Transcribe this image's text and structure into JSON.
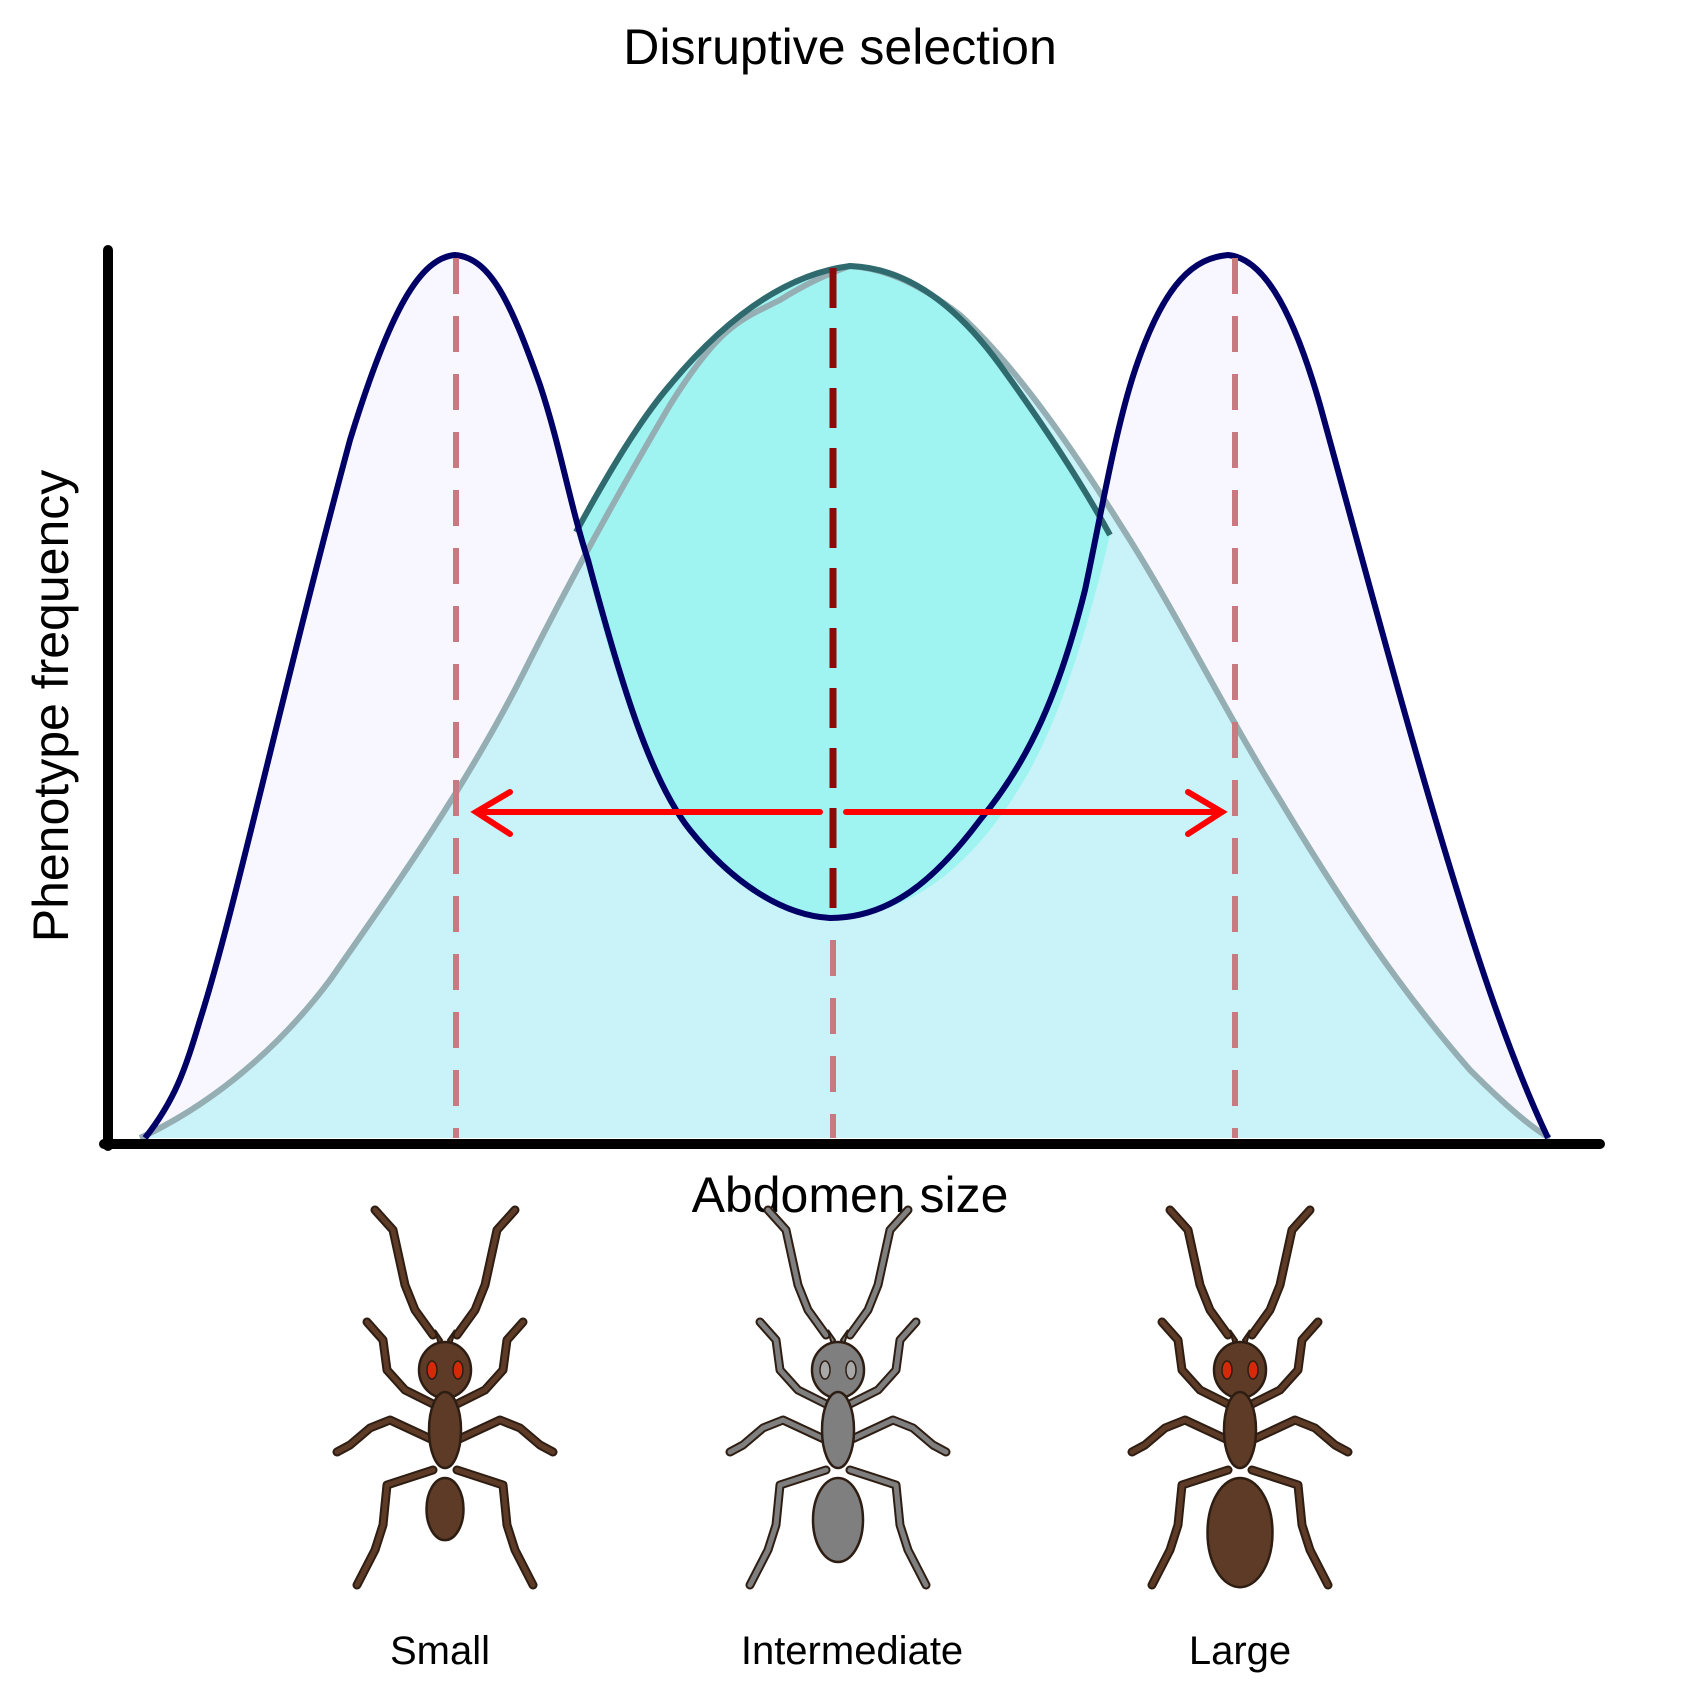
{
  "title": "Disruptive selection",
  "axes": {
    "xlabel": "Abdomen size",
    "ylabel": "Phenotype frequency"
  },
  "curves": [
    {
      "id": "original",
      "description": "single-peaked distribution around the intermediate phenotype",
      "fill": "#9ff4f2",
      "stroke": "#2f6b6e"
    },
    {
      "id": "after-selection",
      "description": "two-peaked distribution with peaks at small and large phenotypes",
      "fill": "#f8f7ff",
      "stroke": "#000066"
    }
  ],
  "markers": {
    "dash_color_outer": "#c87a80",
    "dash_color_center": "#8b0a0a",
    "arrow_color": "#ff0000"
  },
  "ants": [
    {
      "label": "Small",
      "color": "#5e3b26",
      "eye_color": "#d42a0a",
      "abdomen_scale": 0.74
    },
    {
      "label": "Intermediate",
      "color": "#7f7f7f",
      "eye_color": "#a8a8a8",
      "abdomen_scale": 1.0
    },
    {
      "label": "Large",
      "color": "#5e3b26",
      "eye_color": "#d42a0a",
      "abdomen_scale": 1.3
    }
  ]
}
